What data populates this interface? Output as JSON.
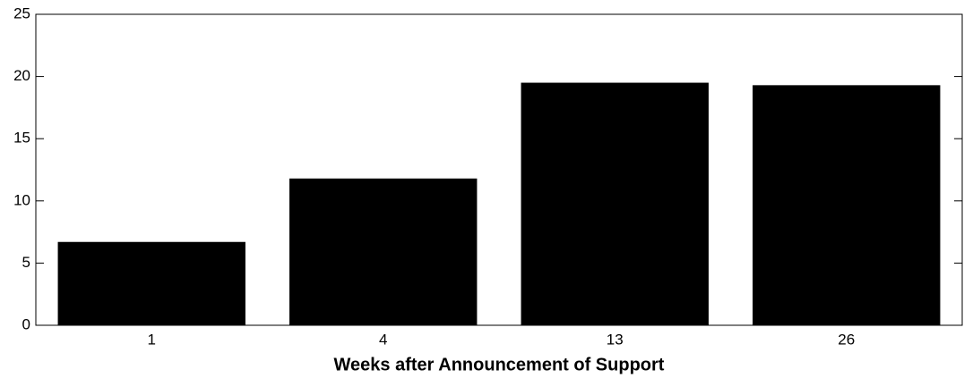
{
  "chart_data": {
    "type": "bar",
    "x_label": "Weeks after Announcement of Support",
    "categories": [
      "1",
      "4",
      "13",
      "26"
    ],
    "values": [
      6.7,
      11.8,
      19.5,
      19.3
    ],
    "color": "#000000",
    "ylim": [
      0,
      25
    ],
    "yticks": [
      0,
      5,
      10,
      15,
      20,
      25
    ],
    "grid": false
  }
}
